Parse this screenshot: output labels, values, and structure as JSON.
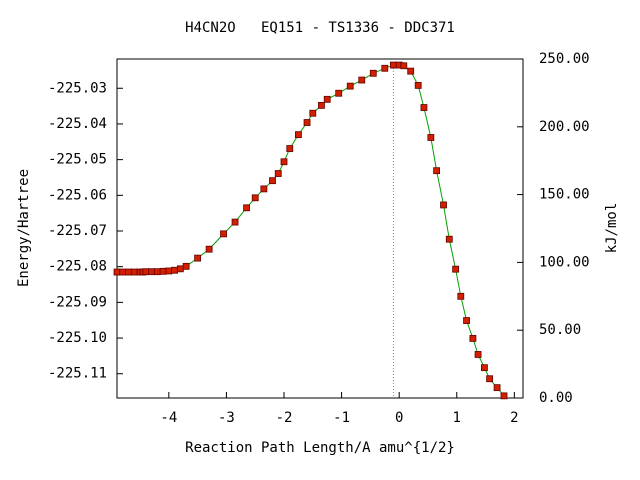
{
  "chart_data": {
    "type": "line",
    "title": "H4CN2O   EQ151 - TS1336 - DDC371",
    "xlabel": "Reaction Path Length/A amu^{1/2}",
    "ylabel": "Energy/Hartree",
    "y2label": "kJ/mol",
    "x": [
      -4.9,
      -4.8,
      -4.7,
      -4.6,
      -4.5,
      -4.45,
      -4.4,
      -4.3,
      -4.2,
      -4.1,
      -4.0,
      -3.9,
      -3.8,
      -3.7,
      -3.5,
      -3.3,
      -3.05,
      -2.85,
      -2.65,
      -2.5,
      -2.35,
      -2.2,
      -2.1,
      -2.0,
      -1.9,
      -1.75,
      -1.6,
      -1.5,
      -1.35,
      -1.25,
      -1.05,
      -0.85,
      -0.65,
      -0.45,
      -0.25,
      -0.1,
      0,
      0.08,
      0.2,
      0.33,
      0.43,
      0.55,
      0.65,
      0.77,
      0.87,
      0.98,
      1.07,
      1.17,
      1.28,
      1.37,
      1.48,
      1.57,
      1.7,
      1.82
    ],
    "values": [
      -225.0815,
      -225.0815,
      -225.0815,
      -225.0815,
      -225.0815,
      -225.0815,
      -225.0814,
      -225.0814,
      -225.0814,
      -225.0813,
      -225.0812,
      -225.081,
      -225.0806,
      -225.0799,
      -225.0776,
      -225.0751,
      -225.0708,
      -225.0675,
      -225.0635,
      -225.0607,
      -225.0582,
      -225.0559,
      -225.0539,
      -225.0506,
      -225.0469,
      -225.043,
      -225.0396,
      -225.037,
      -225.0348,
      -225.0331,
      -225.0314,
      -225.0294,
      -225.0277,
      -225.0258,
      -225.0244,
      -225.0235,
      -225.0235,
      -225.0237,
      -225.0252,
      -225.0292,
      -225.0354,
      -225.0438,
      -225.0531,
      -225.0627,
      -225.0723,
      -225.0807,
      -225.0883,
      -225.0951,
      -225.1001,
      -225.1046,
      -225.1083,
      -225.1114,
      -225.1139,
      -225.1162
    ],
    "color": "#00a000",
    "marker_color": "#d02000",
    "xlim": [
      -4.9,
      2.15
    ],
    "xticks": [
      -4,
      -3,
      -2,
      -1,
      0,
      1,
      2
    ],
    "ylim": [
      -225.1168,
      -225.0218
    ],
    "yticks": [
      -225.03,
      -225.04,
      -225.05,
      -225.06,
      -225.07,
      -225.08,
      -225.09,
      {
        "value": -225.1,
        "label": "-225.10"
      },
      -225.11
    ],
    "y2lim": [
      0,
      250
    ],
    "y2ticks": [
      {
        "value": 0,
        "label": "0.00"
      },
      {
        "value": 50,
        "label": "50.00"
      },
      {
        "value": 100,
        "label": "100.00"
      },
      {
        "value": 150,
        "label": "150.00"
      },
      {
        "value": 200,
        "label": "200.00"
      },
      {
        "value": 250,
        "label": "250.00"
      }
    ]
  }
}
